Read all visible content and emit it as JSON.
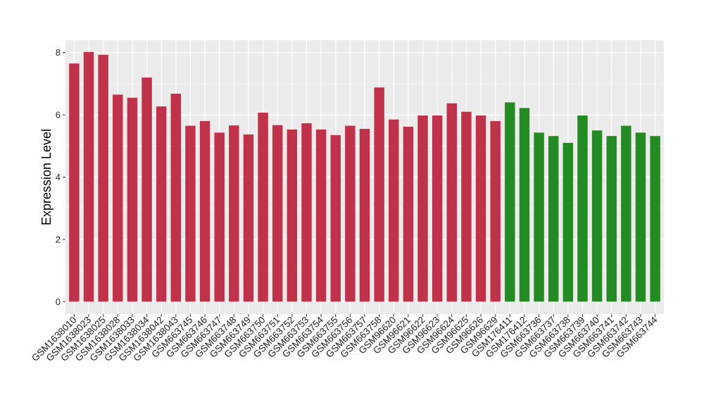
{
  "chart_data": {
    "type": "bar",
    "xlabel": "",
    "ylabel": "Expression Level",
    "ylim": [
      -0.4,
      8.4
    ],
    "yticks": [
      0,
      2,
      4,
      6,
      8
    ],
    "grid": true,
    "categories": [
      "GSM1638010",
      "GSM1638023",
      "GSM1638025",
      "GSM1638028",
      "GSM1638033",
      "GSM1638034",
      "GSM1638042",
      "GSM1638043",
      "GSM663745",
      "GSM663746",
      "GSM663747",
      "GSM663748",
      "GSM663749",
      "GSM663750",
      "GSM663751",
      "GSM663752",
      "GSM663753",
      "GSM663754",
      "GSM663755",
      "GSM663756",
      "GSM663757",
      "GSM663758",
      "GSM96620",
      "GSM96621",
      "GSM96622",
      "GSM96623",
      "GSM96624",
      "GSM96625",
      "GSM96626",
      "GSM96629",
      "GSM176411",
      "GSM176412",
      "GSM663736",
      "GSM663737",
      "GSM663738",
      "GSM663739",
      "GSM663740",
      "GSM663741",
      "GSM663742",
      "GSM663743",
      "GSM663744"
    ],
    "values": [
      7.65,
      8.02,
      7.93,
      6.65,
      6.55,
      7.2,
      6.27,
      6.68,
      5.65,
      5.8,
      5.43,
      5.66,
      5.37,
      6.07,
      5.67,
      5.53,
      5.73,
      5.53,
      5.35,
      5.65,
      5.55,
      6.88,
      5.85,
      5.62,
      5.98,
      5.98,
      6.37,
      6.1,
      5.98,
      5.8,
      6.4,
      6.22,
      5.43,
      5.32,
      5.1,
      5.98,
      5.5,
      5.32,
      5.65,
      5.43,
      5.32
    ],
    "groups": [
      "red",
      "red",
      "red",
      "red",
      "red",
      "red",
      "red",
      "red",
      "red",
      "red",
      "red",
      "red",
      "red",
      "red",
      "red",
      "red",
      "red",
      "red",
      "red",
      "red",
      "red",
      "red",
      "red",
      "red",
      "red",
      "red",
      "red",
      "red",
      "red",
      "red",
      "green",
      "green",
      "green",
      "green",
      "green",
      "green",
      "green",
      "green",
      "green",
      "green",
      "green"
    ],
    "colors": {
      "red": "#C0314A",
      "green": "#228B22",
      "panel": "#EBEBEB",
      "grid": "#FFFFFF",
      "text": "#000000"
    }
  }
}
